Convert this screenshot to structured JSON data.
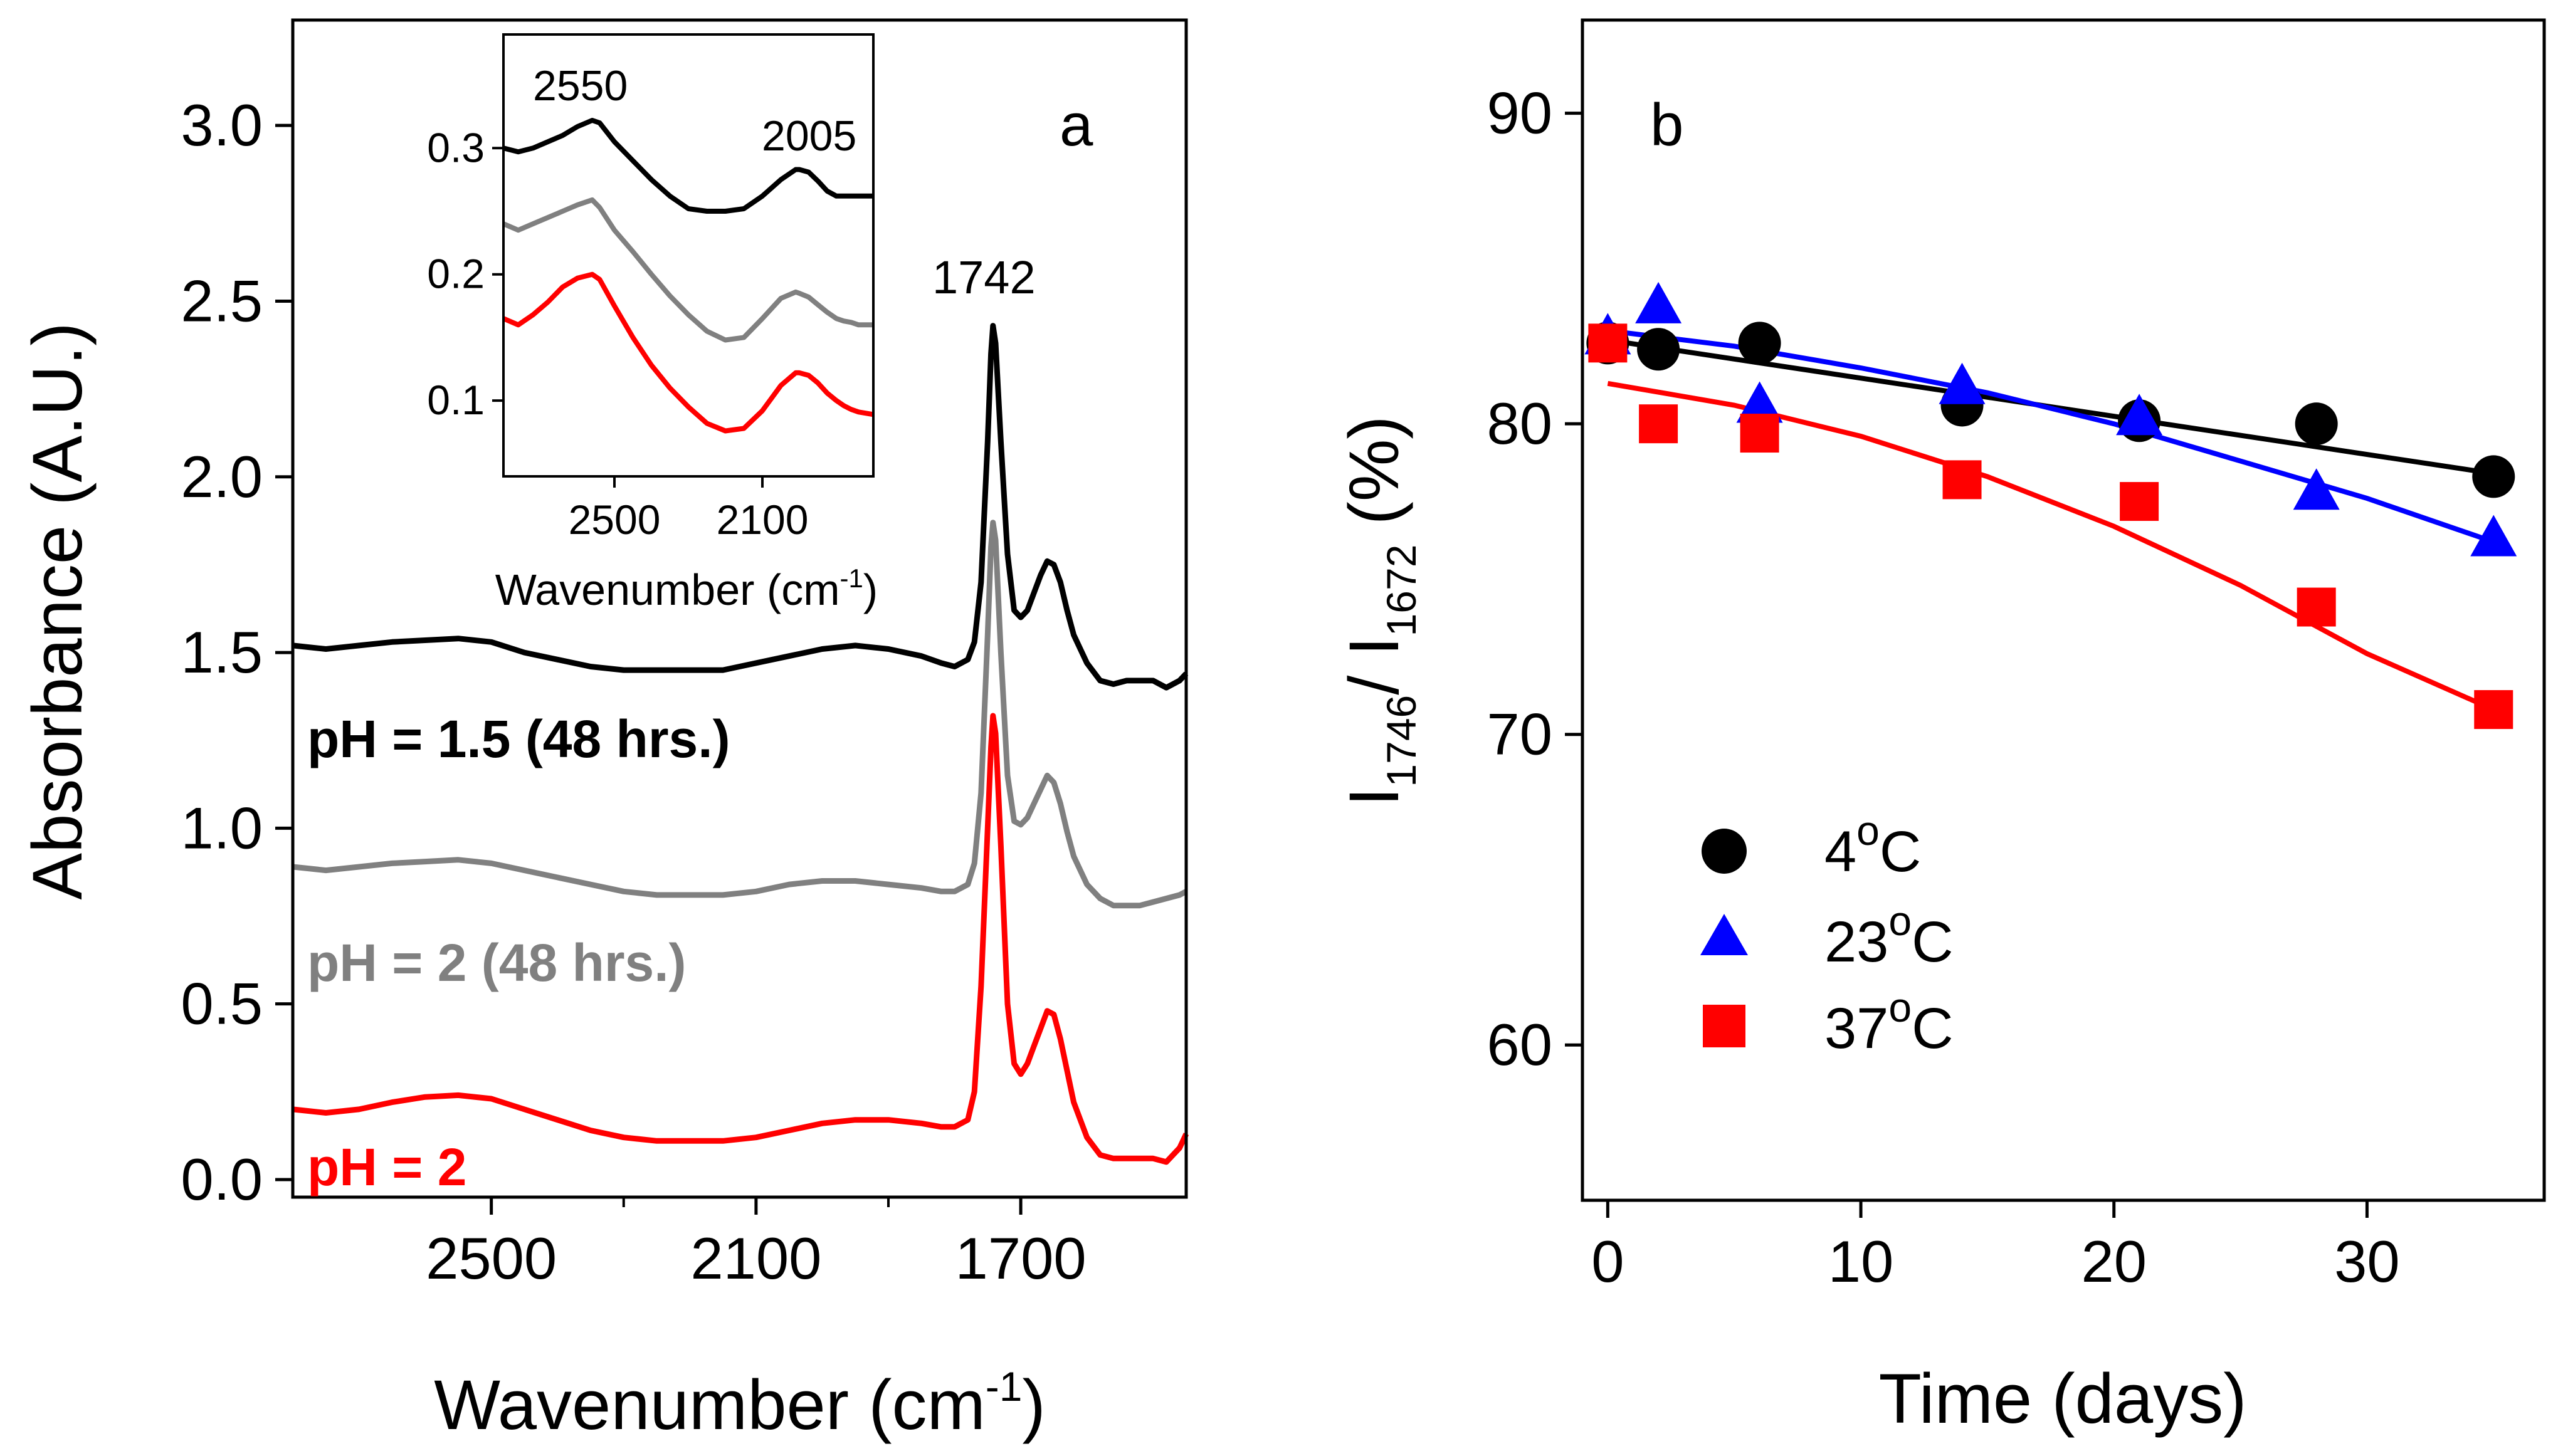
{
  "colors": {
    "black": "#000000",
    "gray": "#808080",
    "red": "#ff0000",
    "blue": "#0000ff"
  },
  "chart_data": [
    {
      "panel": "a",
      "type": "line",
      "panel_label": "a",
      "xlabel": "Wavenumber (cm",
      "xlabel_sup": "-1",
      "xlabel_end": ")",
      "ylabel": "Absorbance (A.U.)",
      "xlim": [
        2800,
        1450
      ],
      "ylim": [
        -0.05,
        3.3
      ],
      "xticks": [
        "2500",
        "2100",
        "1700"
      ],
      "yticks": [
        "0.0",
        "0.5",
        "1.0",
        "1.5",
        "2.0",
        "2.5",
        "3.0"
      ],
      "peak_label": "1742",
      "annotations": [
        {
          "text": "pH = 1.5 (48 hrs.)",
          "series": "pH = 1.5 (48 hrs.)"
        },
        {
          "text": "pH = 2 (48 hrs.)",
          "series": "pH = 2 (48 hrs.)"
        },
        {
          "text": "pH = 2",
          "series": "pH = 2"
        }
      ],
      "series": [
        {
          "name": "pH = 1.5 (48 hrs.)",
          "color": "black",
          "x": [
            2800,
            2750,
            2700,
            2650,
            2600,
            2550,
            2500,
            2450,
            2400,
            2350,
            2300,
            2250,
            2200,
            2150,
            2100,
            2050,
            2000,
            1950,
            1900,
            1850,
            1820,
            1800,
            1780,
            1770,
            1760,
            1750,
            1745,
            1742,
            1738,
            1730,
            1720,
            1710,
            1700,
            1690,
            1680,
            1670,
            1660,
            1650,
            1640,
            1630,
            1620,
            1600,
            1580,
            1560,
            1540,
            1520,
            1500,
            1480,
            1460,
            1450
          ],
          "y": [
            1.52,
            1.51,
            1.52,
            1.53,
            1.535,
            1.54,
            1.53,
            1.5,
            1.48,
            1.46,
            1.45,
            1.45,
            1.45,
            1.45,
            1.47,
            1.49,
            1.51,
            1.52,
            1.51,
            1.49,
            1.47,
            1.46,
            1.48,
            1.53,
            1.7,
            2.1,
            2.35,
            2.43,
            2.38,
            2.1,
            1.78,
            1.62,
            1.6,
            1.62,
            1.67,
            1.72,
            1.76,
            1.75,
            1.7,
            1.62,
            1.55,
            1.47,
            1.42,
            1.41,
            1.42,
            1.42,
            1.42,
            1.4,
            1.42,
            1.44
          ]
        },
        {
          "name": "pH = 2 (48 hrs.)",
          "color": "gray",
          "x": [
            2800,
            2750,
            2700,
            2650,
            2600,
            2550,
            2500,
            2450,
            2400,
            2350,
            2300,
            2250,
            2200,
            2150,
            2100,
            2050,
            2000,
            1950,
            1900,
            1850,
            1820,
            1800,
            1780,
            1770,
            1760,
            1750,
            1745,
            1742,
            1738,
            1730,
            1720,
            1710,
            1700,
            1690,
            1680,
            1670,
            1660,
            1650,
            1640,
            1630,
            1620,
            1600,
            1580,
            1560,
            1540,
            1520,
            1500,
            1480,
            1460,
            1450
          ],
          "y": [
            0.89,
            0.88,
            0.89,
            0.9,
            0.905,
            0.91,
            0.9,
            0.88,
            0.86,
            0.84,
            0.82,
            0.81,
            0.81,
            0.81,
            0.82,
            0.84,
            0.85,
            0.85,
            0.84,
            0.83,
            0.82,
            0.82,
            0.84,
            0.9,
            1.1,
            1.55,
            1.8,
            1.87,
            1.82,
            1.5,
            1.15,
            1.02,
            1.01,
            1.03,
            1.07,
            1.11,
            1.15,
            1.13,
            1.07,
            0.99,
            0.92,
            0.84,
            0.8,
            0.78,
            0.78,
            0.78,
            0.79,
            0.8,
            0.81,
            0.82
          ]
        },
        {
          "name": "pH = 2",
          "color": "red",
          "x": [
            2800,
            2750,
            2700,
            2650,
            2600,
            2550,
            2500,
            2450,
            2400,
            2350,
            2300,
            2250,
            2200,
            2150,
            2100,
            2050,
            2000,
            1950,
            1900,
            1850,
            1820,
            1800,
            1780,
            1770,
            1760,
            1750,
            1745,
            1742,
            1738,
            1730,
            1720,
            1710,
            1700,
            1690,
            1680,
            1670,
            1660,
            1650,
            1640,
            1630,
            1620,
            1600,
            1580,
            1560,
            1540,
            1520,
            1500,
            1480,
            1460,
            1450
          ],
          "y": [
            0.2,
            0.19,
            0.2,
            0.22,
            0.235,
            0.24,
            0.23,
            0.2,
            0.17,
            0.14,
            0.12,
            0.11,
            0.11,
            0.11,
            0.12,
            0.14,
            0.16,
            0.17,
            0.17,
            0.16,
            0.15,
            0.15,
            0.17,
            0.25,
            0.55,
            1.0,
            1.23,
            1.32,
            1.27,
            0.95,
            0.5,
            0.33,
            0.3,
            0.33,
            0.38,
            0.43,
            0.48,
            0.47,
            0.4,
            0.31,
            0.22,
            0.12,
            0.07,
            0.06,
            0.06,
            0.06,
            0.06,
            0.05,
            0.09,
            0.13
          ]
        }
      ]
    },
    {
      "panel": "a-inset",
      "type": "line",
      "xlabel": "Wavenumber (cm",
      "xlabel_sup": "-1",
      "xlabel_end": ")",
      "xlim": [
        2800,
        1800
      ],
      "ylim": [
        0.04,
        0.39
      ],
      "xticks": [
        "2500",
        "2100"
      ],
      "yticks": [
        "0.1",
        "0.2",
        "0.3"
      ],
      "peak_labels": [
        "2550",
        "2005"
      ],
      "series": [
        {
          "name": "pH = 1.5 (48 hrs.)",
          "color": "black",
          "x": [
            2800,
            2760,
            2720,
            2680,
            2640,
            2600,
            2560,
            2540,
            2500,
            2450,
            2400,
            2350,
            2300,
            2250,
            2200,
            2150,
            2100,
            2050,
            2010,
            2000,
            1975,
            1950,
            1925,
            1900,
            1880,
            1860,
            1840,
            1820,
            1800
          ],
          "y": [
            0.3,
            0.297,
            0.3,
            0.305,
            0.31,
            0.317,
            0.322,
            0.32,
            0.305,
            0.29,
            0.275,
            0.262,
            0.252,
            0.25,
            0.25,
            0.252,
            0.262,
            0.275,
            0.283,
            0.283,
            0.281,
            0.274,
            0.266,
            0.262,
            0.262,
            0.262,
            0.262,
            0.262,
            0.262
          ]
        },
        {
          "name": "pH = 2 (48 hrs.)",
          "color": "gray",
          "x": [
            2800,
            2760,
            2720,
            2680,
            2640,
            2600,
            2560,
            2540,
            2500,
            2450,
            2400,
            2350,
            2300,
            2250,
            2200,
            2150,
            2100,
            2050,
            2010,
            2000,
            1975,
            1950,
            1925,
            1900,
            1880,
            1860,
            1840,
            1820,
            1800
          ],
          "y": [
            0.24,
            0.235,
            0.24,
            0.245,
            0.25,
            0.255,
            0.259,
            0.253,
            0.235,
            0.218,
            0.2,
            0.183,
            0.168,
            0.155,
            0.148,
            0.15,
            0.165,
            0.181,
            0.186,
            0.185,
            0.182,
            0.176,
            0.17,
            0.165,
            0.163,
            0.162,
            0.16,
            0.16,
            0.16
          ]
        },
        {
          "name": "pH = 2",
          "color": "red",
          "x": [
            2800,
            2760,
            2720,
            2680,
            2640,
            2600,
            2560,
            2540,
            2500,
            2450,
            2400,
            2350,
            2300,
            2250,
            2200,
            2150,
            2100,
            2050,
            2010,
            2000,
            1975,
            1950,
            1925,
            1900,
            1880,
            1860,
            1840,
            1820,
            1800
          ],
          "y": [
            0.165,
            0.16,
            0.168,
            0.178,
            0.19,
            0.197,
            0.2,
            0.196,
            0.175,
            0.15,
            0.128,
            0.11,
            0.095,
            0.082,
            0.076,
            0.078,
            0.092,
            0.112,
            0.122,
            0.122,
            0.12,
            0.114,
            0.106,
            0.1,
            0.096,
            0.093,
            0.091,
            0.09,
            0.089
          ]
        }
      ]
    },
    {
      "panel": "b",
      "type": "scatter",
      "panel_label": "b",
      "xlabel": "Time (days)",
      "ylabel_parts": [
        "I",
        "1746",
        "/ I",
        "1672",
        " (%)"
      ],
      "xlim": [
        -1,
        37
      ],
      "ylim": [
        55,
        93
      ],
      "xticks": [
        "0",
        "10",
        "20",
        "30"
      ],
      "yticks": [
        "60",
        "70",
        "80",
        "90"
      ],
      "legend_position": "lower-left",
      "series": [
        {
          "name": "4",
          "unit": "C",
          "degree": "o",
          "marker": "circle",
          "color": "black",
          "x": [
            0,
            2,
            6,
            14,
            21,
            28,
            35
          ],
          "y": [
            82.6,
            82.4,
            82.6,
            80.6,
            80.1,
            80.0,
            78.3
          ],
          "fit": {
            "x": [
              0,
              35
            ],
            "y": [
              82.7,
              78.4
            ]
          }
        },
        {
          "name": "23",
          "unit": "C",
          "degree": "o",
          "marker": "triangle",
          "color": "blue",
          "x": [
            0,
            2,
            6,
            14,
            21,
            28,
            35
          ],
          "y": [
            82.8,
            83.8,
            80.6,
            81.2,
            80.2,
            77.8,
            76.3
          ],
          "fit": {
            "x": [
              0,
              5,
              10,
              15,
              20,
              25,
              30,
              35
            ],
            "y": [
              83.0,
              82.5,
              81.8,
              81.0,
              80.0,
              78.8,
              77.6,
              76.2
            ]
          }
        },
        {
          "name": "37",
          "unit": "C",
          "degree": "o",
          "marker": "square",
          "color": "red",
          "x": [
            0,
            2,
            6,
            14,
            21,
            28,
            35
          ],
          "y": [
            82.6,
            80.0,
            79.7,
            78.2,
            77.5,
            74.1,
            70.8
          ],
          "fit": {
            "x": [
              0,
              5,
              10,
              15,
              20,
              25,
              30,
              35
            ],
            "y": [
              81.3,
              80.6,
              79.6,
              78.3,
              76.7,
              74.8,
              72.6,
              70.8
            ]
          }
        }
      ]
    }
  ]
}
